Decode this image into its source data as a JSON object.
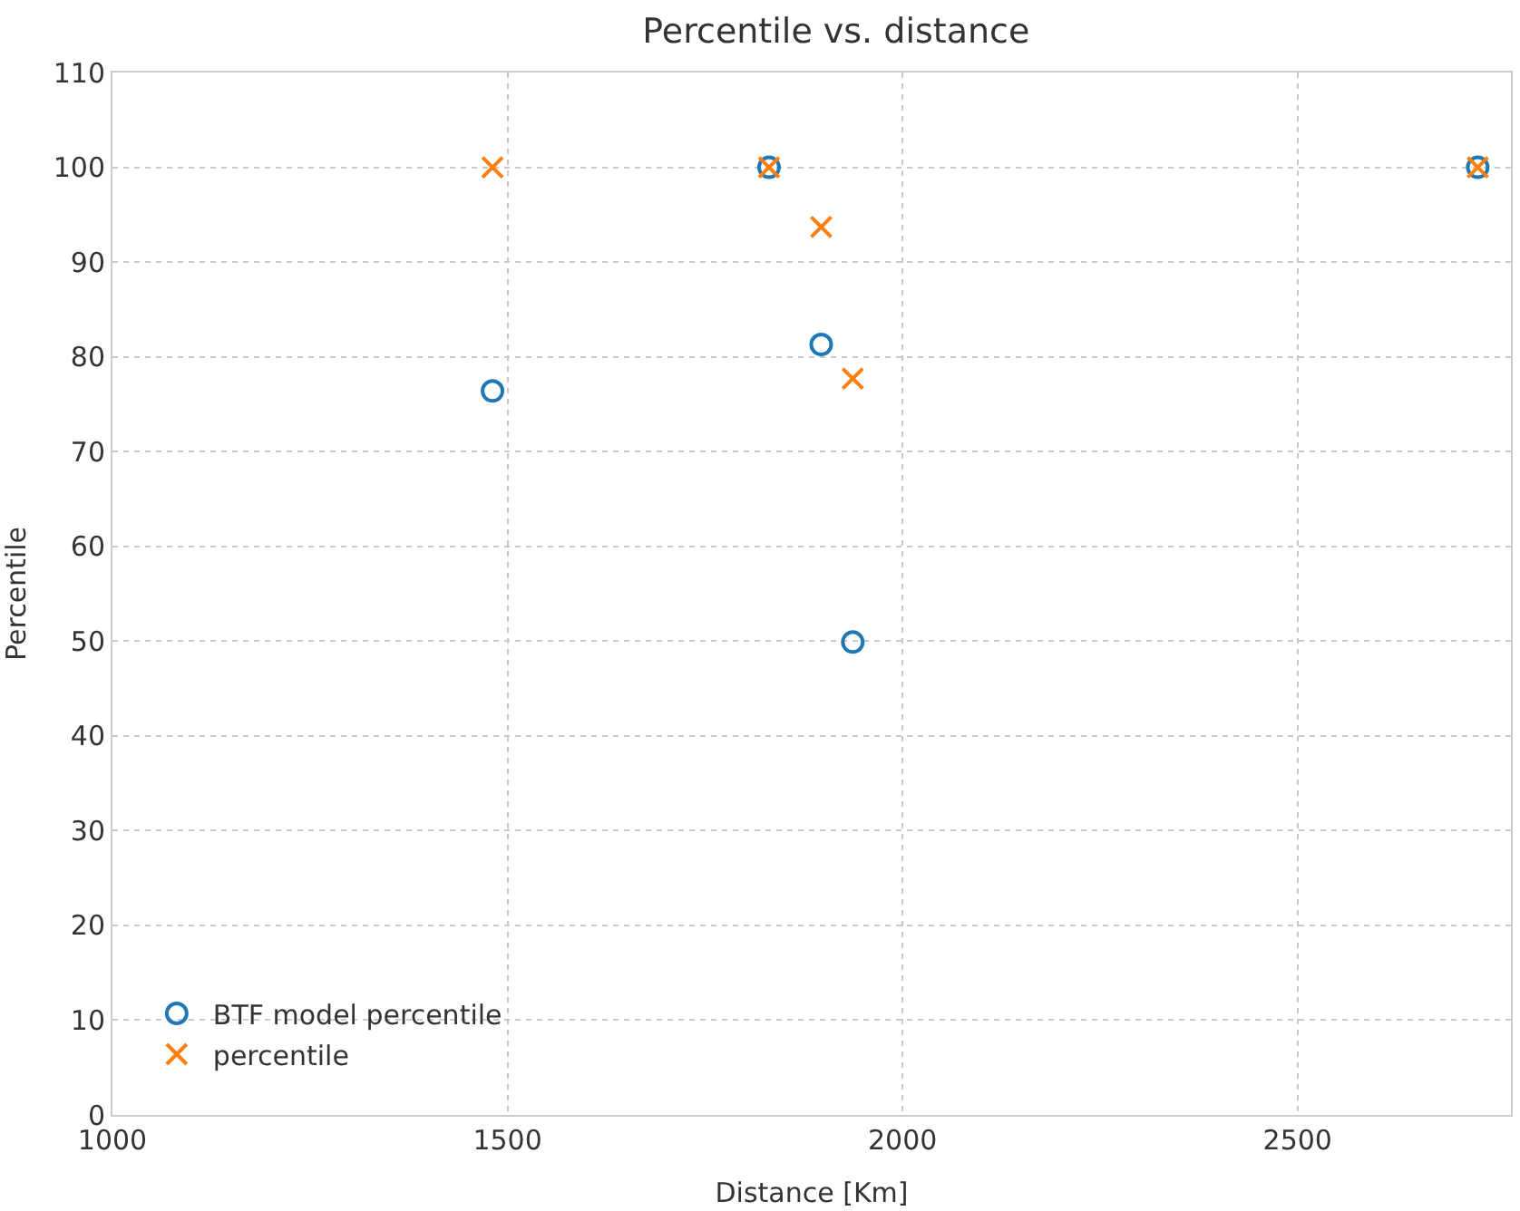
{
  "chart_data": {
    "type": "scatter",
    "title": "Percentile vs. distance",
    "xlabel": "Distance [Km]",
    "ylabel": "Percentile",
    "series": [
      {
        "name": "BTF model percentile",
        "color": "#1f77b4",
        "marker": "circle",
        "x": [
          1481,
          1831,
          1897,
          1937,
          2728
        ],
        "values": [
          76.4,
          100,
          81.3,
          49.9,
          100
        ]
      },
      {
        "name": "percentile",
        "color": "#ff7f0e",
        "marker": "cross",
        "x": [
          1481,
          1831,
          1897,
          1937,
          2728
        ],
        "values": [
          100,
          100,
          93.7,
          77.7,
          100
        ]
      }
    ],
    "xlim": [
      1000,
      2770
    ],
    "xticks": [
      1000,
      1500,
      2000,
      2500
    ],
    "ylim": [
      0,
      110
    ],
    "yticks": [
      0,
      10,
      20,
      30,
      40,
      50,
      60,
      70,
      80,
      90,
      100,
      110
    ],
    "grid": true,
    "legend": "bottom left"
  }
}
